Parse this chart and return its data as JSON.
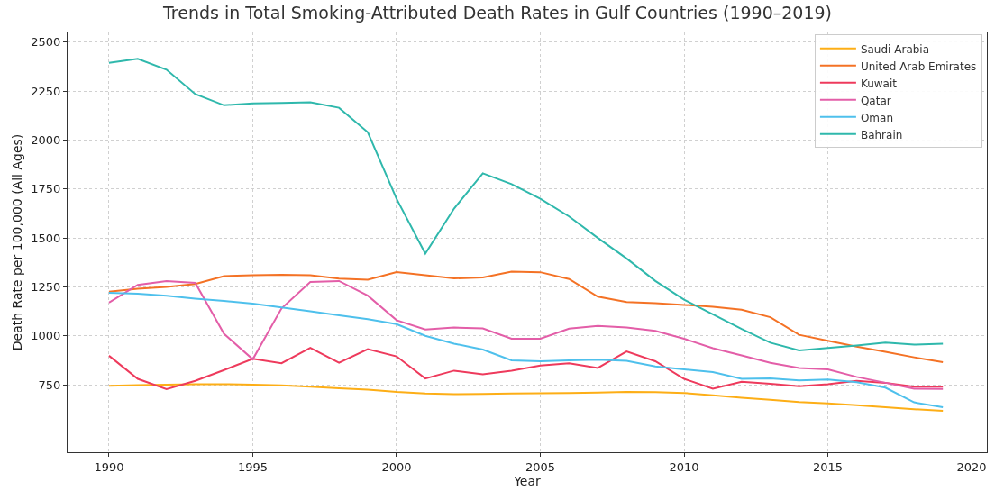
{
  "chart_data": {
    "type": "line",
    "title": "Trends in Total Smoking-Attributed Death Rates in Gulf Countries (1990–2019)",
    "xlabel": "Year",
    "ylabel": "Death Rate per 100,000 (All Ages)",
    "x": [
      1990,
      1991,
      1992,
      1993,
      1994,
      1995,
      1996,
      1997,
      1998,
      1999,
      2000,
      2001,
      2002,
      2003,
      2004,
      2005,
      2006,
      2007,
      2008,
      2009,
      2010,
      2011,
      2012,
      2013,
      2014,
      2015,
      2016,
      2017,
      2018,
      2019
    ],
    "series": [
      {
        "name": "Saudi Arabia",
        "color": "#fdae16",
        "values": [
          745,
          748,
          750,
          752,
          753,
          750,
          747,
          740,
          732,
          725,
          713,
          705,
          702,
          703,
          705,
          706,
          708,
          710,
          713,
          712,
          708,
          696,
          683,
          673,
          662,
          655,
          645,
          635,
          625,
          617
        ]
      },
      {
        "name": "United Arab Emirates",
        "color": "#f47225",
        "values": [
          1225,
          1240,
          1250,
          1265,
          1305,
          1310,
          1312,
          1310,
          1292,
          1287,
          1325,
          1310,
          1293,
          1298,
          1328,
          1325,
          1290,
          1200,
          1173,
          1167,
          1158,
          1148,
          1133,
          1095,
          1005,
          975,
          945,
          918,
          890,
          865
        ]
      },
      {
        "name": "Kuwait",
        "color": "#ee3a5c",
        "values": [
          898,
          780,
          727,
          770,
          825,
          882,
          860,
          938,
          862,
          932,
          895,
          782,
          822,
          803,
          822,
          848,
          860,
          836,
          920,
          870,
          780,
          730,
          765,
          755,
          742,
          752,
          770,
          760,
          740,
          740
        ]
      },
      {
        "name": "Qatar",
        "color": "#e35ea8",
        "values": [
          1170,
          1260,
          1280,
          1270,
          1010,
          880,
          1140,
          1275,
          1280,
          1205,
          1080,
          1032,
          1042,
          1038,
          985,
          985,
          1037,
          1050,
          1042,
          1025,
          985,
          937,
          900,
          862,
          835,
          828,
          790,
          760,
          730,
          728
        ]
      },
      {
        "name": "Oman",
        "color": "#4ec0ec",
        "values": [
          1220,
          1215,
          1205,
          1190,
          1178,
          1165,
          1145,
          1125,
          1105,
          1085,
          1060,
          1000,
          960,
          930,
          875,
          870,
          875,
          878,
          872,
          843,
          828,
          815,
          780,
          782,
          772,
          777,
          763,
          735,
          660,
          635
        ]
      },
      {
        "name": "Bahrain",
        "color": "#2fb8ac",
        "values": [
          2395,
          2415,
          2360,
          2235,
          2178,
          2188,
          2190,
          2193,
          2165,
          2040,
          1700,
          1420,
          1650,
          1830,
          1775,
          1700,
          1610,
          1500,
          1395,
          1280,
          1185,
          1110,
          1035,
          965,
          925,
          938,
          950,
          965,
          955,
          960
        ]
      }
    ],
    "xlim": [
      1988.56,
      2020.53
    ],
    "xticks": [
      1990,
      1995,
      2000,
      2005,
      2010,
      2015,
      2020
    ],
    "ylim": [
      405,
      2550
    ],
    "yticks": [
      750,
      1000,
      1250,
      1500,
      1750,
      2000,
      2250,
      2500
    ],
    "grid": true,
    "legend": "top right",
    "line_style": "solid",
    "marker": "none"
  }
}
